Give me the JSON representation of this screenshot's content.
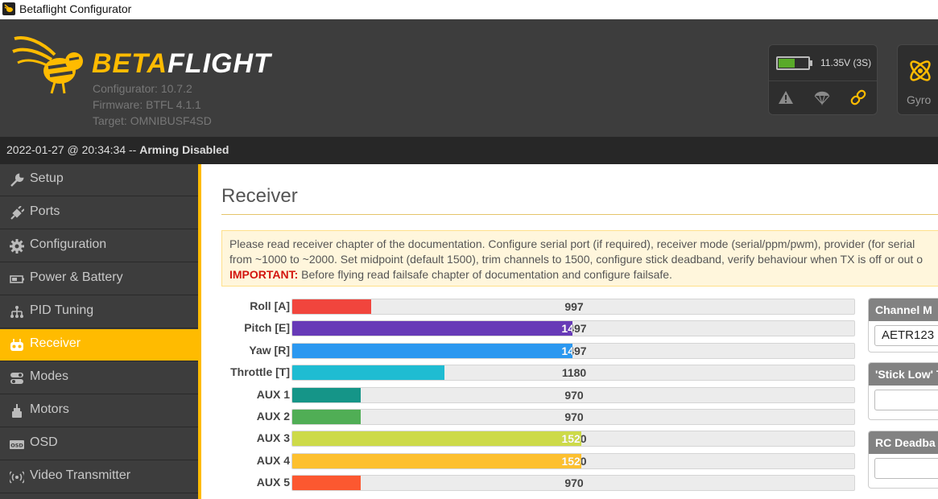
{
  "window": {
    "title": "Betaflight Configurator"
  },
  "header": {
    "brand_a": "BETA",
    "brand_b": "FLIGHT",
    "configurator": "Configurator: 10.7.2",
    "firmware": "Firmware: BTFL 4.1.1",
    "target": "Target: OMNIBUSF4SD",
    "battery_voltage": "11.35V (3S)",
    "battery_level": 0.55,
    "gyro_label": "Gyro",
    "colors": {
      "accent": "#ffbb00",
      "battery": "#59aa29",
      "link": "#ffbb00"
    }
  },
  "status": {
    "timestamp": "2022-01-27 @ 20:34:34 -- ",
    "arming": "Arming Disabled"
  },
  "sidebar": {
    "items": [
      {
        "label": "Setup",
        "icon": "wrench-icon"
      },
      {
        "label": "Ports",
        "icon": "plug-icon"
      },
      {
        "label": "Configuration",
        "icon": "gear-icon"
      },
      {
        "label": "Power & Battery",
        "icon": "battery-icon"
      },
      {
        "label": "PID Tuning",
        "icon": "sliders-icon"
      },
      {
        "label": "Receiver",
        "icon": "remote-icon",
        "active": true
      },
      {
        "label": "Modes",
        "icon": "switches-icon"
      },
      {
        "label": "Motors",
        "icon": "motor-icon"
      },
      {
        "label": "OSD",
        "icon": "osd-icon"
      },
      {
        "label": "Video Transmitter",
        "icon": "antenna-icon"
      }
    ]
  },
  "main": {
    "title": "Receiver",
    "note": {
      "line1": "Please read receiver chapter of the documentation. Configure serial port (if required), receiver mode (serial/ppm/pwm), provider (for serial",
      "line2": "from ~1000 to ~2000. Set midpoint (default 1500), trim channels to 1500, configure stick deadband, verify behaviour when TX is off or out o",
      "important": "IMPORTANT:",
      "line3": " Before flying read failsafe chapter of documentation and configure failsafe."
    },
    "channels": [
      {
        "name": "Roll [A]",
        "value": "997",
        "color": "#f1453d"
      },
      {
        "name": "Pitch [E]",
        "value": "1497",
        "color": "#673ab7"
      },
      {
        "name": "Yaw [R]",
        "value": "1497",
        "color": "#2b98f0"
      },
      {
        "name": "Throttle [T]",
        "value": "1180",
        "color": "#1fbcd2"
      },
      {
        "name": "AUX 1",
        "value": "970",
        "color": "#159588"
      },
      {
        "name": "AUX 2",
        "value": "970",
        "color": "#50ae55"
      },
      {
        "name": "AUX 3",
        "value": "1520",
        "color": "#cdda49"
      },
      {
        "name": "AUX 4",
        "value": "1520",
        "color": "#fdc02f"
      },
      {
        "name": "AUX 5",
        "value": "970",
        "color": "#fc5830"
      }
    ],
    "right_panels": {
      "channel_map_title": "Channel M",
      "channel_map_value": "AETR123",
      "stick_low_title": "'Stick Low' T",
      "stick_low_value": "",
      "rc_deadband_title": "RC Deadba",
      "rc_deadband_value": ""
    }
  }
}
